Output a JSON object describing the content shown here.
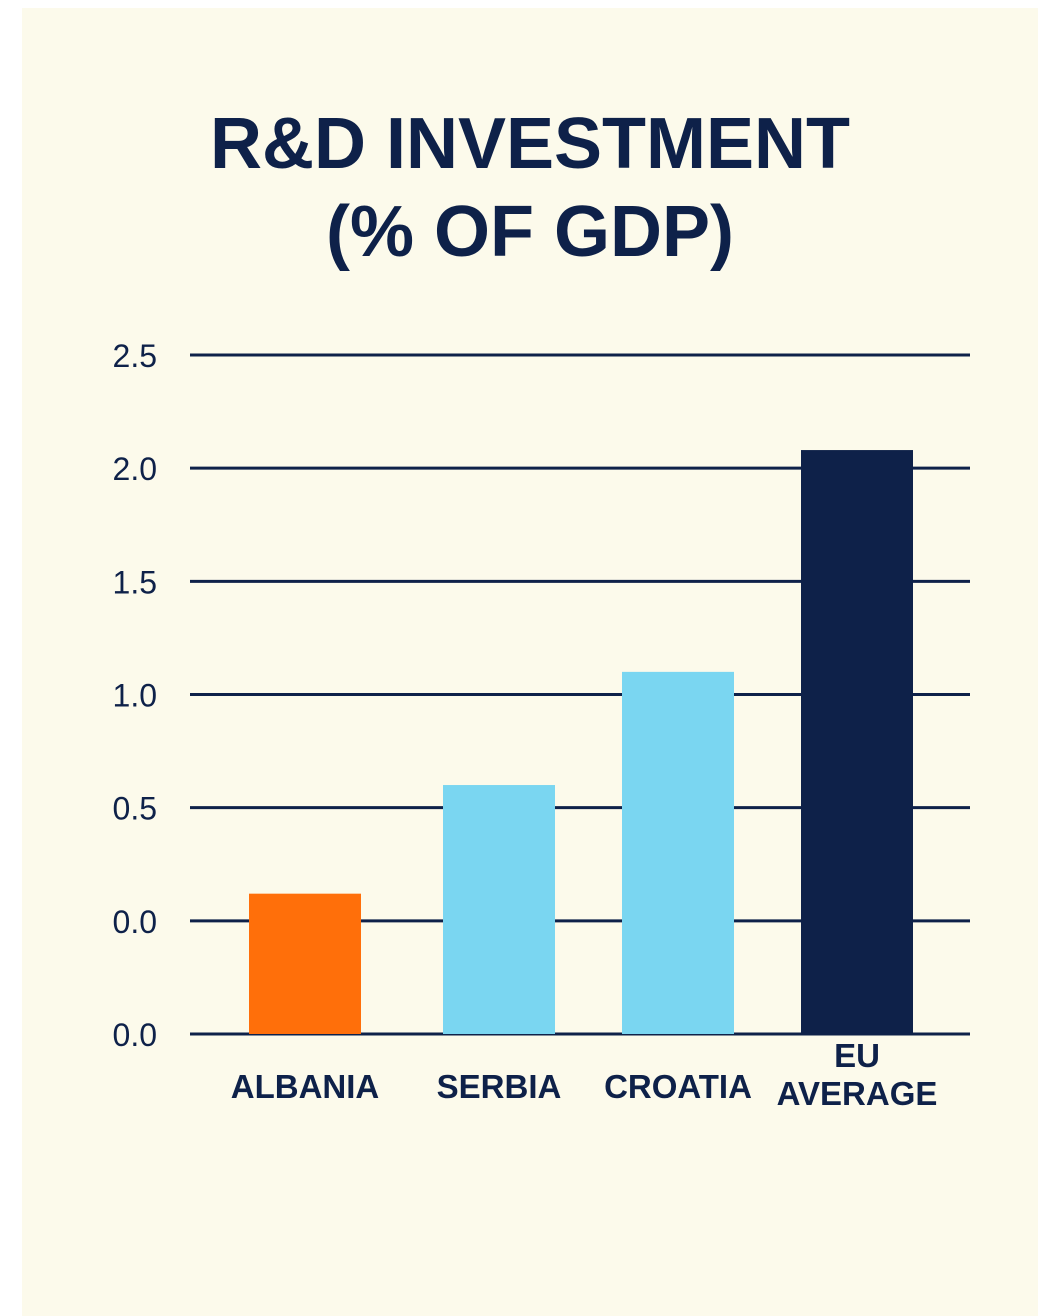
{
  "chart_data": {
    "type": "bar",
    "title_lines": [
      "R&D INVESTMENT",
      "(% OF GDP)"
    ],
    "categories": [
      [
        "ALBANIA"
      ],
      [
        "SERBIA"
      ],
      [
        "CROATIA"
      ],
      [
        "EU",
        "AVERAGE"
      ]
    ],
    "values": [
      0.12,
      0.6,
      1.1,
      2.08
    ],
    "tick_labels": [
      "0.0",
      "0.0",
      "0.5",
      "1.0",
      "1.5",
      "2.0",
      "2.5"
    ],
    "ylim": [
      -0.5,
      2.5
    ],
    "grid": true,
    "legend": "none",
    "xlabel": "",
    "ylabel": "",
    "colors": [
      "#ff6f0a",
      "#7ad6f1",
      "#7ad6f1",
      "#0e2149"
    ]
  },
  "style": {
    "panel_background": "#fcfaeb",
    "text_color": "#0e2149",
    "grid_color": "#0e2149"
  }
}
